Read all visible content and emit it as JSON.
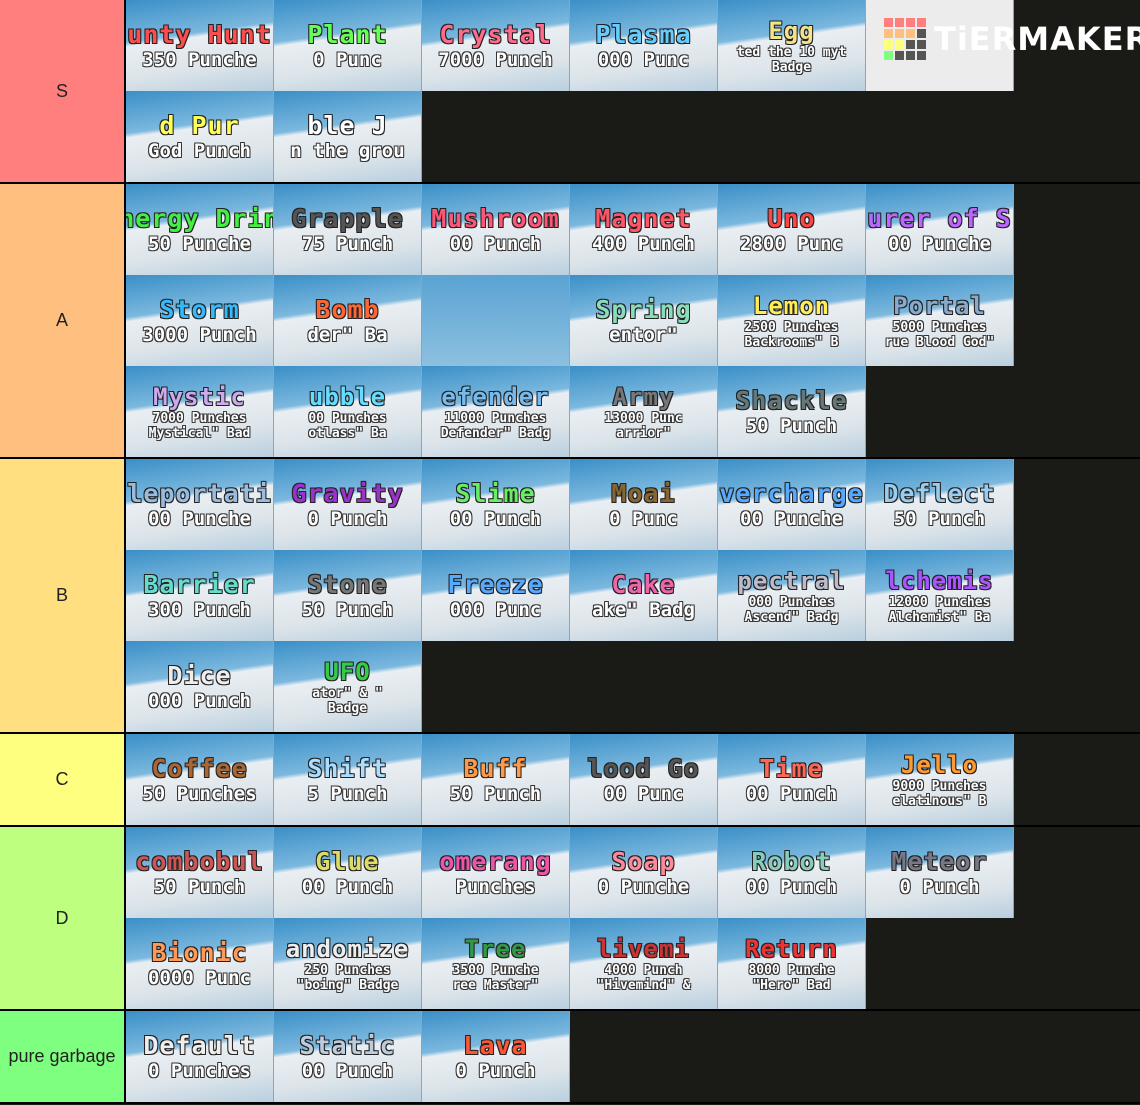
{
  "logo": "TiERMAKER",
  "tiers": [
    {
      "label": "S",
      "color": "#ff7f7f",
      "tiles": [
        {
          "color": "#ff4d4d",
          "lines": [
            "unty Hunt",
            "350 Punche"
          ]
        },
        {
          "color": "#66ff55",
          "lines": [
            "Plant",
            "0 Punc"
          ]
        },
        {
          "color": "#ff6b8a",
          "lines": [
            "Crystal",
            "7000 Punch"
          ]
        },
        {
          "color": "#66ccff",
          "lines": [
            "Plasma",
            "000 Punc"
          ]
        },
        {
          "color": "#f3e38a",
          "lines": [
            "Egg",
            "ted the 10 myt",
            "Badge"
          ]
        },
        {
          "color": "#ffffff",
          "lines": []
        },
        {
          "color": "#ffff55",
          "lines": [
            "d Pur",
            "God Punch"
          ]
        },
        {
          "color": "#ffffff",
          "lines": [
            "ble J",
            "n the grou"
          ]
        }
      ]
    },
    {
      "label": "A",
      "color": "#ffbf7f",
      "tiles": [
        {
          "color": "#44ee44",
          "lines": [
            "nergy Drin",
            "50 Punche"
          ]
        },
        {
          "color": "#555555",
          "lines": [
            "Grapple",
            "75 Punch"
          ]
        },
        {
          "color": "#ff5577",
          "lines": [
            "Mushroom",
            "00 Punch"
          ]
        },
        {
          "color": "#ff5566",
          "lines": [
            "Magnet",
            "400 Punch"
          ]
        },
        {
          "color": "#ff4444",
          "lines": [
            "Uno",
            "2800 Punc"
          ]
        },
        {
          "color": "#bb66ff",
          "lines": [
            "urer of S",
            "00 Punche"
          ]
        },
        {
          "color": "#33bbff",
          "lines": [
            "Storm",
            "3000 Punch"
          ]
        },
        {
          "color": "#ff6633",
          "lines": [
            "Bomb",
            "der\" Ba"
          ]
        },
        {
          "color": "#ffffff",
          "lines": []
        },
        {
          "color": "#88ddbb",
          "lines": [
            "Spring",
            "entor\""
          ]
        },
        {
          "color": "#ffee55",
          "lines": [
            "Lemon",
            "2500 Punches",
            "Backrooms\" B"
          ]
        },
        {
          "color": "#88aacc",
          "lines": [
            "Portal",
            "5000 Punches",
            "rue Blood God\""
          ]
        },
        {
          "color": "#ccaaee",
          "lines": [
            "Mystic",
            "7000 Punches",
            "Mystical\" Bad"
          ]
        },
        {
          "color": "#66ddff",
          "lines": [
            "ubble",
            "00 Punches",
            "otlass\" Ba"
          ]
        },
        {
          "color": "#77bbee",
          "lines": [
            "efender",
            "11000 Punches",
            "Defender\" Badg"
          ]
        },
        {
          "color": "#777777",
          "lines": [
            "Army",
            "13000 Punc",
            "arrior\""
          ]
        },
        {
          "color": "#667777",
          "lines": [
            "Shackle",
            "50 Punch"
          ]
        }
      ]
    },
    {
      "label": "B",
      "color": "#ffdf7f",
      "tiles": [
        {
          "color": "#99bbdd",
          "lines": [
            "leportati",
            "00 Punche"
          ]
        },
        {
          "color": "#9933cc",
          "lines": [
            "Gravity",
            "0 Punch"
          ]
        },
        {
          "color": "#66ee66",
          "lines": [
            "Slime",
            "00 Punch"
          ]
        },
        {
          "color": "#886633",
          "lines": [
            "Moai",
            "0 Punc"
          ]
        },
        {
          "color": "#55aaff",
          "lines": [
            "vercharge",
            "00 Punche"
          ]
        },
        {
          "color": "#99ccee",
          "lines": [
            "Deflect",
            "50 Punch"
          ]
        },
        {
          "color": "#66ddcc",
          "lines": [
            "Barrier",
            "300 Punch"
          ]
        },
        {
          "color": "#777777",
          "lines": [
            "Stone",
            "50 Punch"
          ]
        },
        {
          "color": "#55aaff",
          "lines": [
            "Freeze",
            "000 Punc"
          ]
        },
        {
          "color": "#ee66aa",
          "lines": [
            "Cake",
            "ake\" Badg"
          ]
        },
        {
          "color": "#bbbbcc",
          "lines": [
            "pectral",
            "000 Punches",
            "Ascend\" Badg"
          ]
        },
        {
          "color": "#aa55ff",
          "lines": [
            "lchemis",
            "12000 Punches",
            "Alchemist\" Ba"
          ]
        },
        {
          "color": "#eeeeee",
          "lines": [
            "Dice",
            "000 Punch"
          ]
        },
        {
          "color": "#33cc44",
          "lines": [
            "UFO",
            "ator\" & \"",
            "Badge"
          ]
        }
      ]
    },
    {
      "label": "C",
      "color": "#ffff7f",
      "tiles": [
        {
          "color": "#aa6633",
          "lines": [
            "Coffee",
            "50 Punches"
          ]
        },
        {
          "color": "#aaddff",
          "lines": [
            "Shift",
            "5 Punch"
          ]
        },
        {
          "color": "#ff9944",
          "lines": [
            "Buff",
            "50 Punch"
          ]
        },
        {
          "color": "#555555",
          "lines": [
            "lood Go",
            "00 Punc"
          ]
        },
        {
          "color": "#ff6655",
          "lines": [
            "Time",
            "00 Punch"
          ]
        },
        {
          "color": "#ff9933",
          "lines": [
            "Jello",
            "9000 Punches",
            "elatinous\" B"
          ]
        }
      ]
    },
    {
      "label": "D",
      "color": "#bfff7f",
      "tiles": [
        {
          "color": "#cc5555",
          "lines": [
            "combobul",
            "50 Punch"
          ]
        },
        {
          "color": "#dddd66",
          "lines": [
            "Glue",
            "00 Punch"
          ]
        },
        {
          "color": "#ee55aa",
          "lines": [
            "omerang",
            "Punches"
          ]
        },
        {
          "color": "#ff8899",
          "lines": [
            "Soap",
            "0 Punche"
          ]
        },
        {
          "color": "#88ccbb",
          "lines": [
            "Robot",
            "00 Punch"
          ]
        },
        {
          "color": "#777788",
          "lines": [
            "Meteor",
            "0 Punch"
          ]
        },
        {
          "color": "#ff9955",
          "lines": [
            "Bionic",
            "0000 Punc"
          ]
        },
        {
          "color": "#eeeeee",
          "lines": [
            "andomize",
            "250 Punches",
            "\"boing\" Badge"
          ]
        },
        {
          "color": "#339944",
          "lines": [
            "Tree",
            "3500 Punche",
            "ree Master\""
          ]
        },
        {
          "color": "#cc3333",
          "lines": [
            "livemi",
            "4000 Punch",
            "\"Hivemind\" &"
          ]
        },
        {
          "color": "#ee3333",
          "lines": [
            "Return",
            "8000 Punche",
            "\"Hero\" Bad"
          ]
        }
      ]
    },
    {
      "label": "pure garbage",
      "color": "#7fff7f",
      "tiles": [
        {
          "color": "#eeeeee",
          "lines": [
            "Default",
            "0 Punches"
          ]
        },
        {
          "color": "#bbccdd",
          "lines": [
            "Static",
            "00 Punch"
          ]
        },
        {
          "color": "#ff5533",
          "lines": [
            "Lava",
            "0 Punch"
          ]
        }
      ]
    }
  ]
}
